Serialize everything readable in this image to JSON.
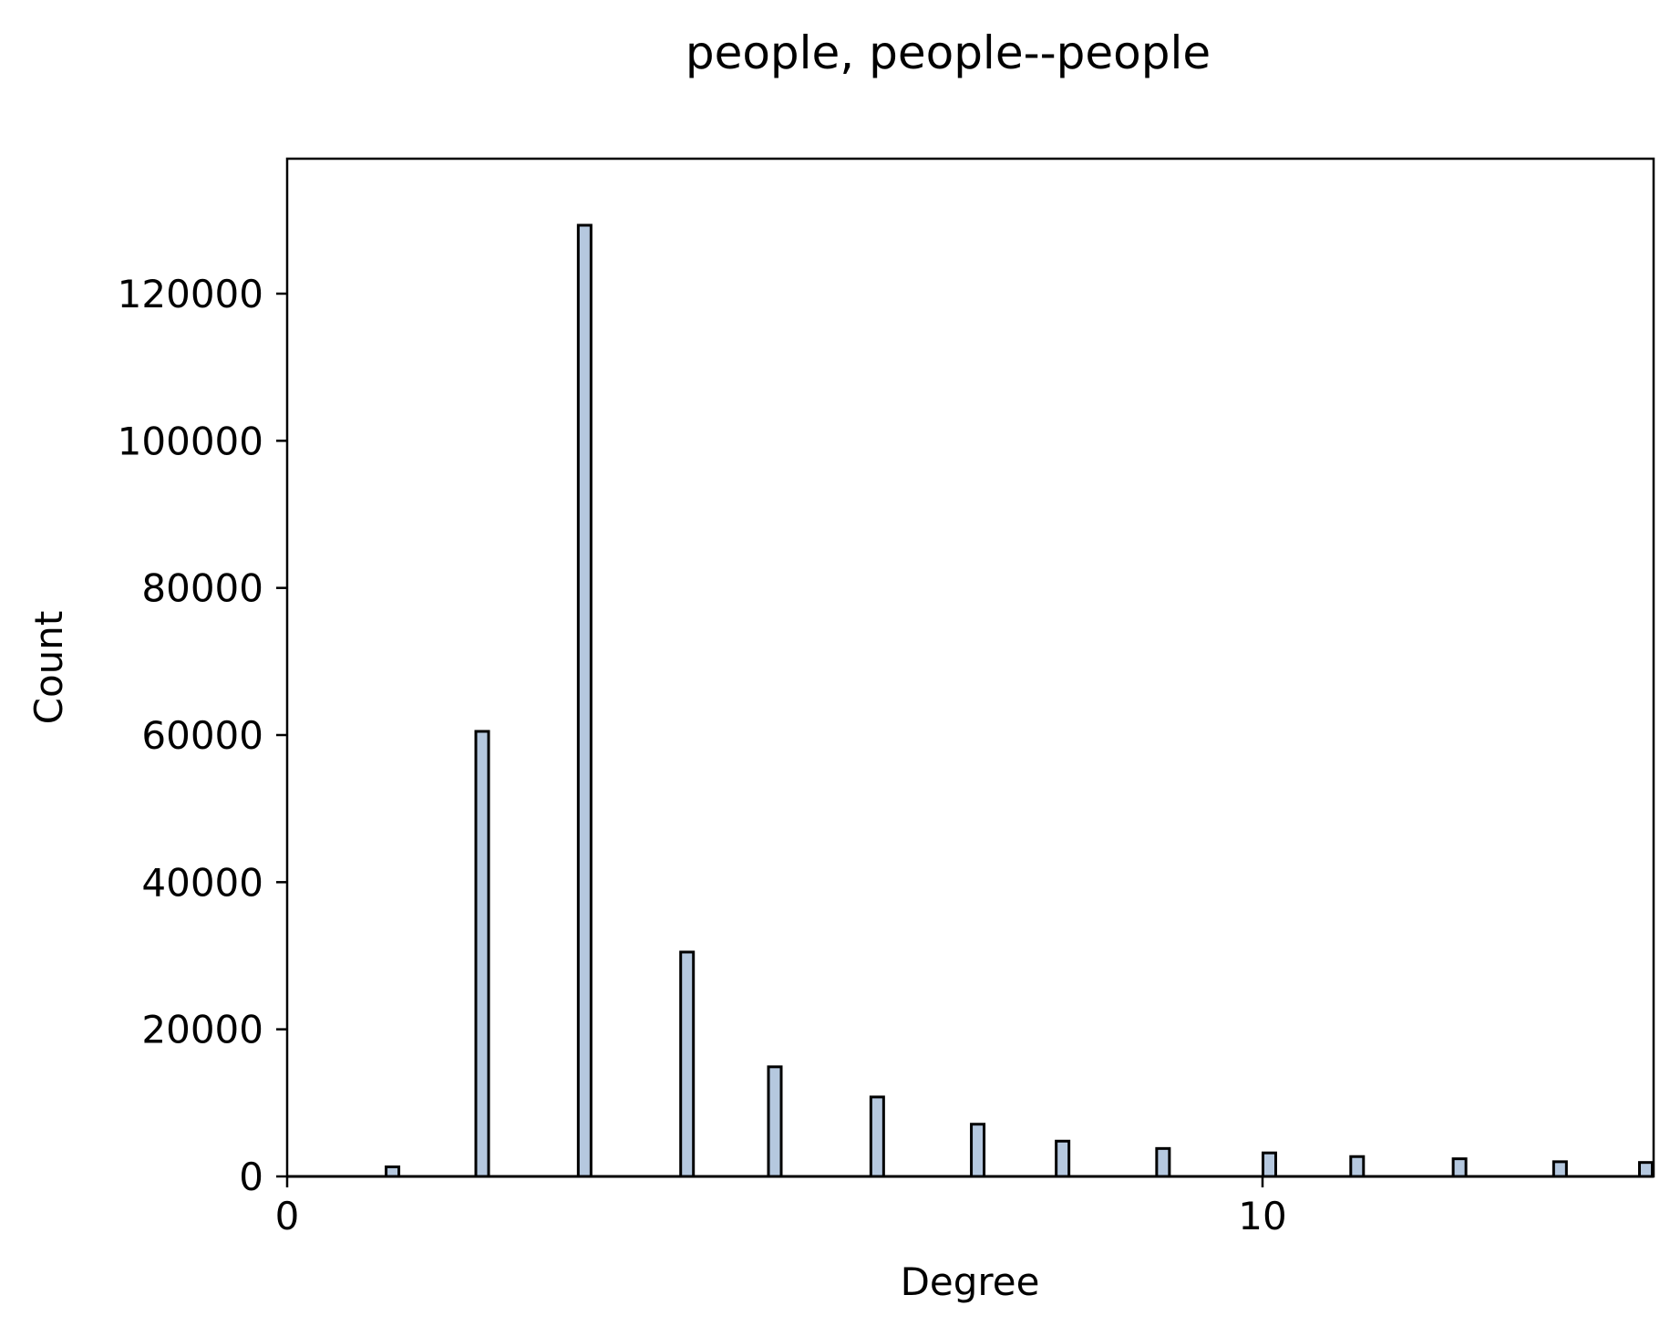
{
  "chart_data": {
    "type": "bar",
    "title": "people, people--people",
    "xlabel": "Degree",
    "ylabel": "Count",
    "xlim": [
      0,
      14
    ],
    "ylim": [
      0,
      136000
    ],
    "x_ticks": [
      0,
      10
    ],
    "y_ticks": [
      0,
      20000,
      40000,
      60000,
      80000,
      100000,
      120000
    ],
    "x_tick_labels": [
      "0",
      "10"
    ],
    "y_tick_labels": [
      "0",
      "20000",
      "40000",
      "60000",
      "80000",
      "100000",
      "120000"
    ],
    "x": [
      1.08,
      2,
      3.05,
      4.1,
      5,
      6.05,
      7.08,
      7.95,
      8.98,
      10.07,
      10.97,
      12.02,
      13.05,
      13.93
    ],
    "values": [
      1300,
      60500,
      129300,
      30500,
      14900,
      10800,
      7100,
      4800,
      3800,
      3200,
      2700,
      2400,
      2000,
      1900
    ],
    "grid": false,
    "colors": {
      "bar_fill": "#b5c8df",
      "bar_edge": "#000000"
    }
  }
}
